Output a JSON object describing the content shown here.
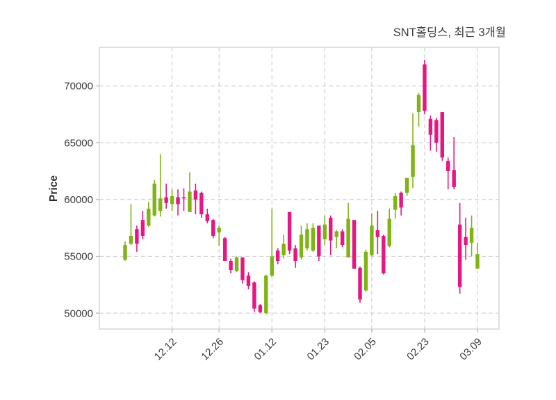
{
  "chart_data": {
    "type": "candlestick",
    "title": "SNT홀딩스, 최근 3개월",
    "ylabel": "Price",
    "grid": true,
    "legend": "none",
    "ylim": [
      48600,
      73400
    ],
    "yticks": [
      50000,
      55000,
      60000,
      65000,
      70000
    ],
    "xtick_labels": [
      "12.12",
      "12.26",
      "01.12",
      "01.23",
      "02.05",
      "02.23",
      "03.09"
    ],
    "xtick_indices": [
      8,
      16,
      25,
      34,
      42,
      51,
      60
    ],
    "colors": {
      "up": "#7fb414",
      "down": "#e51782",
      "grid": "#cccccc",
      "spine": "#d9d9d9",
      "tick": "#b5b5b5",
      "text": "#3a3a3a"
    },
    "candles_format": [
      "open",
      "high",
      "low",
      "close"
    ],
    "candles": [
      [
        54700,
        56300,
        54600,
        56000
      ],
      [
        56100,
        59600,
        56000,
        56800
      ],
      [
        57400,
        57700,
        55400,
        56100
      ],
      [
        58200,
        59000,
        56500,
        56800
      ],
      [
        57700,
        59800,
        57600,
        59200
      ],
      [
        58600,
        61700,
        58500,
        61400
      ],
      [
        59000,
        64000,
        58500,
        60100
      ],
      [
        60200,
        61400,
        59200,
        59700
      ],
      [
        59600,
        60900,
        59000,
        60300
      ],
      [
        60200,
        60900,
        58600,
        59600
      ],
      [
        60200,
        61000,
        59000,
        60100
      ],
      [
        58900,
        62400,
        58900,
        60700
      ],
      [
        60800,
        61400,
        58700,
        60000
      ],
      [
        60600,
        60700,
        58400,
        58700
      ],
      [
        58700,
        59200,
        57900,
        58100
      ],
      [
        58200,
        58300,
        56600,
        56800
      ],
      [
        57100,
        57700,
        55900,
        57500
      ],
      [
        56600,
        56700,
        54600,
        54600
      ],
      [
        54600,
        54800,
        53500,
        53800
      ],
      [
        53700,
        55000,
        53600,
        54900
      ],
      [
        54900,
        54900,
        52600,
        52900
      ],
      [
        53300,
        53600,
        52100,
        52400
      ],
      [
        52700,
        52800,
        50100,
        50400
      ],
      [
        50700,
        50800,
        50000,
        50100
      ],
      [
        50000,
        53400,
        49900,
        53300
      ],
      [
        53300,
        59200,
        53200,
        55000
      ],
      [
        55500,
        55700,
        54300,
        54600
      ],
      [
        55100,
        56900,
        54800,
        56100
      ],
      [
        58900,
        58900,
        55200,
        55500
      ],
      [
        55700,
        56000,
        54000,
        54600
      ],
      [
        54900,
        57700,
        54700,
        56900
      ],
      [
        55700,
        57900,
        55500,
        57400
      ],
      [
        55500,
        57900,
        55400,
        57500
      ],
      [
        57700,
        57700,
        54600,
        55000
      ],
      [
        56500,
        58600,
        56000,
        57800
      ],
      [
        58400,
        58600,
        55100,
        56400
      ],
      [
        56700,
        57300,
        55700,
        57200
      ],
      [
        57200,
        57400,
        55800,
        56000
      ],
      [
        54900,
        59700,
        54900,
        58300
      ],
      [
        58200,
        58200,
        53900,
        53900
      ],
      [
        54000,
        54100,
        50900,
        51200
      ],
      [
        52000,
        55600,
        51900,
        55400
      ],
      [
        55100,
        58800,
        55000,
        57700
      ],
      [
        57300,
        59000,
        55200,
        56700
      ],
      [
        56800,
        56900,
        53400,
        53500
      ],
      [
        55900,
        59200,
        55800,
        58300
      ],
      [
        59100,
        60600,
        58300,
        60300
      ],
      [
        60600,
        60700,
        58600,
        59300
      ],
      [
        60600,
        61900,
        60300,
        61900
      ],
      [
        62000,
        67600,
        61000,
        64800
      ],
      [
        67700,
        69400,
        66400,
        69200
      ],
      [
        71900,
        72300,
        67500,
        67800
      ],
      [
        67100,
        67400,
        64300,
        65700
      ],
      [
        67000,
        67200,
        64200,
        65000
      ],
      [
        67700,
        67700,
        63400,
        63700
      ],
      [
        63400,
        63700,
        60900,
        62500
      ],
      [
        62600,
        65500,
        60900,
        61100
      ],
      [
        57800,
        59700,
        51700,
        52300
      ],
      [
        56700,
        58400,
        54700,
        56000
      ],
      [
        56200,
        58600,
        55000,
        57500
      ],
      [
        53900,
        56200,
        53900,
        55200
      ]
    ]
  }
}
